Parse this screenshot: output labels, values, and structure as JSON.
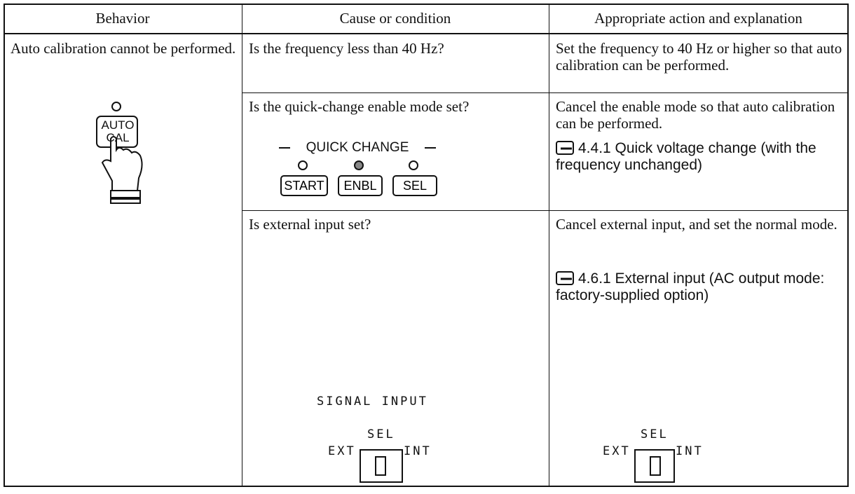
{
  "table": {
    "headers": [
      "Behavior",
      "Cause or condition",
      "Appropriate action and explanation"
    ],
    "behavior": {
      "text": "Auto calibration cannot be performed.",
      "button": [
        "AUTO",
        "CAL"
      ]
    },
    "rows": [
      {
        "cause": "Is the frequency less than 40 Hz?",
        "action": "Set the frequency to 40 Hz or higher so that auto calibration can be performed."
      },
      {
        "cause": "Is the quick-change enable mode set?",
        "panel": {
          "title": "QUICK CHANGE",
          "buttons": [
            "START",
            "ENBL",
            "SEL"
          ]
        },
        "action": "Cancel the enable mode so that auto calibration can be performed.",
        "reference": "4.4.1 Quick voltage change (with the frequency unchanged)"
      },
      {
        "cause": "Is external input set?",
        "panel": {
          "title": "SIGNAL INPUT",
          "switch": {
            "label": "SEL",
            "left": "EXT",
            "right": "INT"
          }
        },
        "action": "Cancel external input, and set the normal mode.",
        "reference": "4.6.1 External input (AC output mode:   factory-supplied option)",
        "switch": {
          "label": "SEL",
          "left": "EXT",
          "right": "INT"
        }
      }
    ]
  }
}
